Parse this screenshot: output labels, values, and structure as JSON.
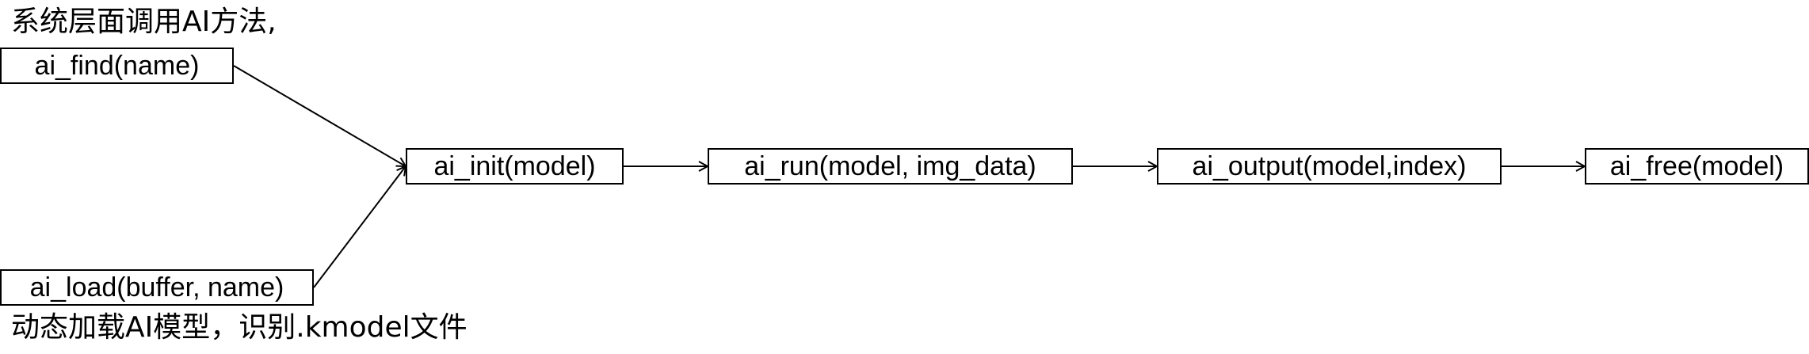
{
  "captions": {
    "top": "系统层面调用AI方法,",
    "bottom": "动态加载AI模型，识别.kmodel文件"
  },
  "nodes": {
    "find": "ai_find(name)",
    "load": "ai_load(buffer, name)",
    "init": "ai_init(model)",
    "run": "ai_run(model, img_data)",
    "output": "ai_output(model,index)",
    "free": "ai_free(model)"
  },
  "edges": [
    {
      "from": "find",
      "to": "init"
    },
    {
      "from": "load",
      "to": "init"
    },
    {
      "from": "init",
      "to": "run"
    },
    {
      "from": "run",
      "to": "output"
    },
    {
      "from": "output",
      "to": "free"
    }
  ],
  "colors": {
    "stroke": "#000000",
    "background": "#ffffff"
  }
}
